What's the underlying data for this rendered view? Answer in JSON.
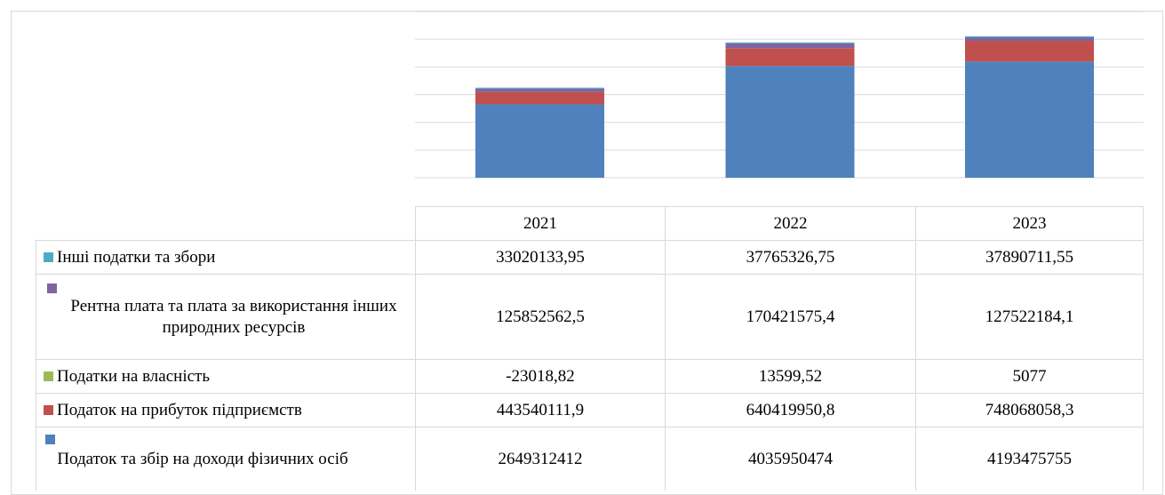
{
  "chart_data": {
    "type": "bar",
    "stacked": true,
    "categories": [
      "2021",
      "2022",
      "2023"
    ],
    "series": [
      {
        "name": "Податок та збір на доходи фізичних осіб",
        "color": "#4f81bd",
        "values": [
          2649312412,
          4035950474,
          4193475755
        ],
        "value_labels": [
          "2649312412",
          "4035950474",
          "4193475755"
        ]
      },
      {
        "name": "Податок на прибуток підприємств",
        "color": "#c0504d",
        "values": [
          443540111.9,
          640419950.8,
          748068058.3
        ],
        "value_labels": [
          "443540111,9",
          "640419950,8",
          "748068058,3"
        ]
      },
      {
        "name": "Податки на власність",
        "color": "#9bbb59",
        "values": [
          -23018.82,
          13599.52,
          5077
        ],
        "value_labels": [
          "-23018,82",
          "13599,52",
          "5077"
        ]
      },
      {
        "name": "Рентна плата та плата за використання інших природних ресурсів",
        "color": "#8064a2",
        "values": [
          125852562.5,
          170421575.4,
          127522184.1
        ],
        "value_labels": [
          "125852562,5",
          "170421575,4",
          "127522184,1"
        ]
      },
      {
        "name": "Інші податки та збори",
        "color": "#4bacc6",
        "values": [
          33020133.95,
          37765326.75,
          37890711.55
        ],
        "value_labels": [
          "33020133,95",
          "37765326,75",
          "37890711,55"
        ]
      }
    ],
    "ylim": [
      0,
      6000000000
    ],
    "yticks": [
      0,
      1000000000,
      2000000000,
      3000000000,
      4000000000,
      5000000000,
      6000000000
    ],
    "grid": true
  }
}
